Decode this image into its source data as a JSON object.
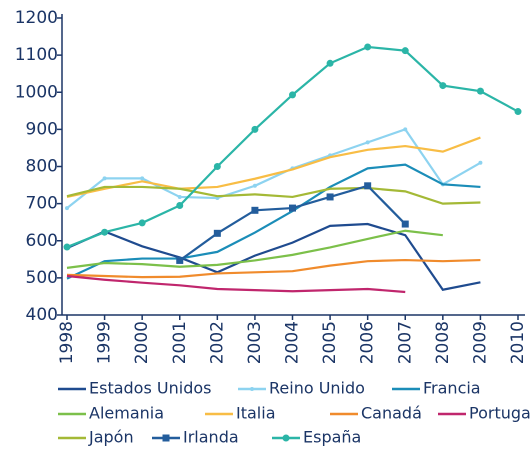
{
  "chart_data": {
    "type": "line",
    "x": [
      1998,
      1999,
      2000,
      2001,
      2002,
      2003,
      2004,
      2005,
      2006,
      2007,
      2008,
      2009,
      2010
    ],
    "xlim": [
      1998,
      2010
    ],
    "ylim": [
      400,
      1200
    ],
    "yticks": [
      400,
      500,
      600,
      700,
      800,
      900,
      1000,
      1100,
      1200
    ],
    "series": [
      {
        "name": "Estados Unidos",
        "color": "#1f4b8f",
        "marker": "none",
        "values": [
          580,
          625,
          585,
          555,
          515,
          560,
          595,
          640,
          645,
          615,
          468,
          488,
          null
        ]
      },
      {
        "name": "Reino Unido",
        "color": "#8dd3f0",
        "marker": "dot",
        "values": [
          688,
          768,
          768,
          718,
          715,
          748,
          795,
          830,
          865,
          900,
          752,
          810,
          null
        ]
      },
      {
        "name": "Francia",
        "color": "#1b8db8",
        "marker": "none",
        "values": [
          498,
          545,
          552,
          552,
          570,
          622,
          680,
          745,
          795,
          805,
          752,
          745,
          null
        ]
      },
      {
        "name": "Alemania",
        "color": "#7cc04a",
        "marker": "none",
        "values": [
          527,
          540,
          537,
          530,
          535,
          547,
          562,
          582,
          605,
          627,
          615,
          null,
          null
        ]
      },
      {
        "name": "Italia",
        "color": "#f8bd45",
        "marker": "none",
        "values": [
          718,
          740,
          760,
          740,
          745,
          767,
          792,
          825,
          845,
          855,
          840,
          878,
          null
        ]
      },
      {
        "name": "Canadá",
        "color": "#f08b2c",
        "marker": "none",
        "values": [
          508,
          505,
          502,
          503,
          512,
          515,
          518,
          533,
          545,
          548,
          545,
          548,
          null
        ]
      },
      {
        "name": "Portugal",
        "color": "#c0266d",
        "marker": "none",
        "values": [
          505,
          495,
          487,
          480,
          470,
          467,
          464,
          467,
          470,
          462,
          null,
          null,
          null
        ]
      },
      {
        "name": "Japón",
        "color": "#a4b936",
        "marker": "none",
        "values": [
          720,
          745,
          745,
          740,
          720,
          725,
          718,
          740,
          742,
          733,
          700,
          703,
          null
        ]
      },
      {
        "name": "Irlanda",
        "color": "#235d9c",
        "marker": "square",
        "values": [
          null,
          null,
          null,
          547,
          620,
          682,
          688,
          718,
          748,
          645,
          null,
          null,
          null
        ]
      },
      {
        "name": "España",
        "color": "#2bb5a7",
        "marker": "circle",
        "values": [
          583,
          623,
          648,
          695,
          800,
          900,
          993,
          1078,
          1122,
          1112,
          1018,
          1003,
          948
        ]
      }
    ]
  }
}
